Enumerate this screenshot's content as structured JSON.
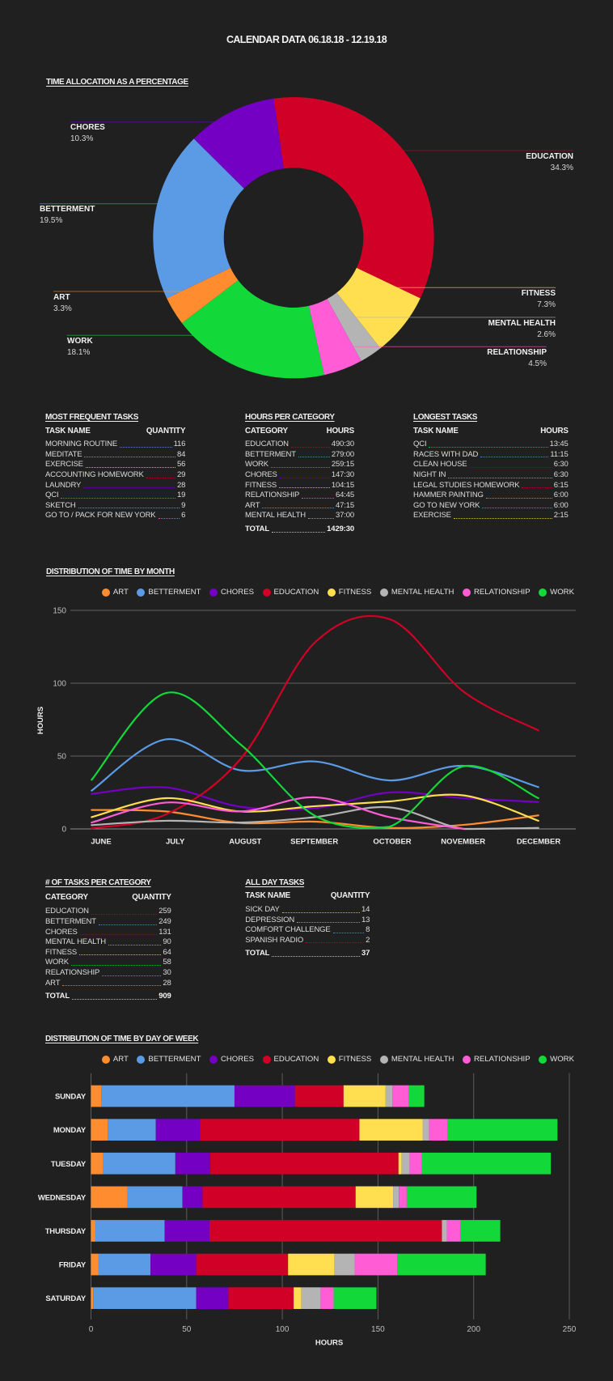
{
  "header": {
    "title": "CALENDAR DATA 06.18.18 - 12.19.18"
  },
  "categories": [
    {
      "key": "art",
      "name": "ART",
      "color": "#FF8C2E"
    },
    {
      "key": "betterment",
      "name": "BETTERMENT",
      "color": "#5B9BE6"
    },
    {
      "key": "chores",
      "name": "CHORES",
      "color": "#7300C2"
    },
    {
      "key": "education",
      "name": "EDUCATION",
      "color": "#D10026"
    },
    {
      "key": "fitness",
      "name": "FITNESS",
      "color": "#FFDE4F"
    },
    {
      "key": "mental_health",
      "name": "MENTAL HEALTH",
      "color": "#B4B4B4"
    },
    {
      "key": "relationship",
      "name": "RELATIONSHIP",
      "color": "#FF5CD6"
    },
    {
      "key": "work",
      "name": "WORK",
      "color": "#13D83A"
    }
  ],
  "chart_data": [
    {
      "type": "pie",
      "variant": "donut",
      "title": "TIME ALLOCATION AS A PERCENTAGE",
      "unit": "percent",
      "slices": [
        {
          "category": "education",
          "label": "EDUCATION",
          "value": 34.3,
          "display": "34.3%"
        },
        {
          "category": "fitness",
          "label": "FITNESS",
          "value": 7.3,
          "display": "7.3%"
        },
        {
          "category": "mental_health",
          "label": "MENTAL HEALTH",
          "value": 2.6,
          "display": "2.6%"
        },
        {
          "category": "relationship",
          "label": "RELATIONSHIP",
          "value": 4.5,
          "display": "4.5%"
        },
        {
          "category": "work",
          "label": "WORK",
          "value": 18.1,
          "display": "18.1%"
        },
        {
          "category": "art",
          "label": "ART",
          "value": 3.3,
          "display": "3.3%"
        },
        {
          "category": "betterment",
          "label": "BETTERMENT",
          "value": 19.5,
          "display": "19.5%"
        },
        {
          "category": "chores",
          "label": "CHORES",
          "value": 10.3,
          "display": "10.3%"
        }
      ]
    },
    {
      "type": "line",
      "title": "DISTRIBUTION OF TIME BY MONTH",
      "smooth": true,
      "x": [
        "JUNE",
        "JULY",
        "AUGUST",
        "SEPTEMBER",
        "OCTOBER",
        "NOVEMBER",
        "DECEMBER"
      ],
      "xlabel": "",
      "ylabel": "HOURS",
      "ylim": [
        0,
        150
      ],
      "yticks": [
        0,
        50,
        100,
        150
      ],
      "grid": true,
      "legend": "top",
      "series": [
        {
          "category": "art",
          "name": "ART",
          "values": [
            13,
            12,
            4.1,
            5,
            0.7,
            2.8,
            9.3
          ]
        },
        {
          "category": "betterment",
          "name": "BETTERMENT",
          "values": [
            26.3,
            61.5,
            40.2,
            46.3,
            33.3,
            43.3,
            28.7
          ]
        },
        {
          "category": "chores",
          "name": "CHORES",
          "values": [
            24.1,
            28.5,
            15.2,
            14.3,
            25,
            21.1,
            18.5
          ]
        },
        {
          "category": "education",
          "name": "EDUCATION",
          "values": [
            0.4,
            10,
            48,
            128,
            144,
            94,
            67.6
          ]
        },
        {
          "category": "fitness",
          "name": "FITNESS",
          "values": [
            8.1,
            21.1,
            12,
            15.6,
            18.9,
            23,
            5.6
          ]
        },
        {
          "category": "mental_health",
          "name": "MENTAL HEALTH",
          "values": [
            2.6,
            5.6,
            4.4,
            8.1,
            14.8,
            0,
            0.7
          ]
        },
        {
          "category": "relationship",
          "name": "RELATIONSHIP",
          "values": [
            4.4,
            18.1,
            12,
            21.7,
            8.1,
            0,
            null
          ]
        },
        {
          "category": "work",
          "name": "WORK",
          "values": [
            33.7,
            93.3,
            58,
            9,
            1.5,
            43,
            21.1
          ]
        }
      ]
    },
    {
      "type": "bar",
      "orientation": "horizontal",
      "stacked": true,
      "title": "DISTRIBUTION OF TIME BY DAY OF WEEK",
      "categories": [
        "SUNDAY",
        "MONDAY",
        "TUESDAY",
        "WEDNESDAY",
        "THURSDAY",
        "FRIDAY",
        "SATURDAY"
      ],
      "xlabel": "HOURS",
      "ylabel": "",
      "xlim": [
        0,
        250
      ],
      "xticks": [
        0,
        50,
        100,
        150,
        200,
        250
      ],
      "grid": true,
      "legend": "top",
      "series": [
        {
          "category": "art",
          "name": "ART",
          "values": [
            5.3,
            8.7,
            6.4,
            19,
            2.3,
            3.8,
            1.1
          ]
        },
        {
          "category": "betterment",
          "name": "BETTERMENT",
          "values": [
            69.7,
            25.2,
            37.7,
            28.8,
            36.2,
            27.3,
            53.9
          ]
        },
        {
          "category": "chores",
          "name": "CHORES",
          "values": [
            31.6,
            23,
            18.3,
            10.5,
            23.4,
            23.9,
            16.8
          ]
        },
        {
          "category": "education",
          "name": "EDUCATION",
          "values": [
            25.4,
            83.4,
            98.3,
            80,
            121.5,
            48,
            34.1
          ]
        },
        {
          "category": "fitness",
          "name": "FITNESS",
          "values": [
            22,
            33,
            1.7,
            19.6,
            0,
            24.3,
            4.1
          ]
        },
        {
          "category": "mental_health",
          "name": "MENTAL HEALTH",
          "values": [
            3.6,
            3.4,
            4.1,
            3,
            2.6,
            10.5,
            10
          ]
        },
        {
          "category": "relationship",
          "name": "RELATIONSHIP",
          "values": [
            8.3,
            9.8,
            6.4,
            4.1,
            7.2,
            22.2,
            6.8
          ]
        },
        {
          "category": "work",
          "name": "WORK",
          "values": [
            8.3,
            57.3,
            67.4,
            36.5,
            20.7,
            46.3,
            22.4
          ]
        }
      ]
    }
  ],
  "tables": {
    "most_frequent": {
      "title": "MOST FREQUENT TASKS",
      "columns": [
        "TASK NAME",
        "QUANTITY"
      ],
      "rows": [
        {
          "name": "MORNING ROUTINE",
          "value": "116",
          "category": "betterment"
        },
        {
          "name": "MEDITATE",
          "value": "84",
          "category": "mental_health"
        },
        {
          "name": "EXERCISE",
          "value": "56",
          "category": "fitness"
        },
        {
          "name": "ACCOUNTING HOMEWORK",
          "value": "29",
          "category": "education"
        },
        {
          "name": "LAUNDRY",
          "value": "28",
          "category": "chores"
        },
        {
          "name": "QCI",
          "value": "19",
          "category": "work"
        },
        {
          "name": "SKETCH",
          "value": "9",
          "category": "art"
        },
        {
          "name": "GO TO / PACK FOR NEW YORK",
          "value": "6",
          "category": "relationship"
        }
      ]
    },
    "hours_per_category": {
      "title": "HOURS PER CATEGORY",
      "columns": [
        "CATEGORY",
        "HOURS"
      ],
      "rows": [
        {
          "name": "EDUCATION",
          "value": "490:30",
          "category": "education"
        },
        {
          "name": "BETTERMENT",
          "value": "279:00",
          "category": "betterment"
        },
        {
          "name": "WORK",
          "value": "259:15",
          "category": "work"
        },
        {
          "name": "CHORES",
          "value": "147:30",
          "category": "chores"
        },
        {
          "name": "FITNESS",
          "value": "104:15",
          "category": "fitness"
        },
        {
          "name": "RELATIONSHIP",
          "value": "64:45",
          "category": "relationship"
        },
        {
          "name": "ART",
          "value": "47:15",
          "category": "art"
        },
        {
          "name": "MENTAL HEALTH",
          "value": "37:00",
          "category": "mental_health"
        }
      ],
      "total": {
        "label": "TOTAL",
        "value": "1429:30"
      }
    },
    "longest_tasks": {
      "title": "LONGEST TASKS",
      "columns": [
        "TASK NAME",
        "HOURS"
      ],
      "rows": [
        {
          "name": "QCI",
          "value": "13:45",
          "category": "work"
        },
        {
          "name": "RACES WITH DAD",
          "value": "11:15",
          "category": "betterment"
        },
        {
          "name": "CLEAN HOUSE",
          "value": "6:30",
          "category": "chores"
        },
        {
          "name": "NIGHT IN",
          "value": "6:30",
          "category": "mental_health"
        },
        {
          "name": "LEGAL STUDIES HOMEWORK",
          "value": "6:15",
          "category": "education"
        },
        {
          "name": "HAMMER PAINTING",
          "value": "6:00",
          "category": "art"
        },
        {
          "name": "GO TO NEW YORK",
          "value": "6:00",
          "category": "relationship"
        },
        {
          "name": "EXERCISE",
          "value": "2:15",
          "category": "fitness"
        }
      ]
    },
    "tasks_per_category": {
      "title": "# OF TASKS PER CATEGORY",
      "columns": [
        "CATEGORY",
        "QUANTITY"
      ],
      "rows": [
        {
          "name": "EDUCATION",
          "value": "259",
          "category": "education"
        },
        {
          "name": "BETTERMENT",
          "value": "249",
          "category": "betterment"
        },
        {
          "name": "CHORES",
          "value": "131",
          "category": "chores"
        },
        {
          "name": "MENTAL HEALTH",
          "value": "90",
          "category": "mental_health"
        },
        {
          "name": "FITNESS",
          "value": "64",
          "category": "fitness"
        },
        {
          "name": "WORK",
          "value": "58",
          "category": "work"
        },
        {
          "name": "RELATIONSHIP",
          "value": "30",
          "category": "relationship"
        },
        {
          "name": "ART",
          "value": "28",
          "category": "art"
        }
      ],
      "total": {
        "label": "TOTAL",
        "value": "909"
      }
    },
    "all_day_tasks": {
      "title": "ALL DAY TASKS",
      "columns": [
        "TASK NAME",
        "QUANTITY"
      ],
      "rows": [
        {
          "name": "SICK DAY",
          "value": "14",
          "category": "fitness"
        },
        {
          "name": "DEPRESSION",
          "value": "13",
          "category": "mental_health"
        },
        {
          "name": "COMFORT CHALLENGE",
          "value": "8",
          "category": "betterment"
        },
        {
          "name": "SPANISH RADIO",
          "value": "2",
          "category": "education"
        }
      ],
      "total": {
        "label": "TOTAL",
        "value": "37"
      }
    }
  }
}
